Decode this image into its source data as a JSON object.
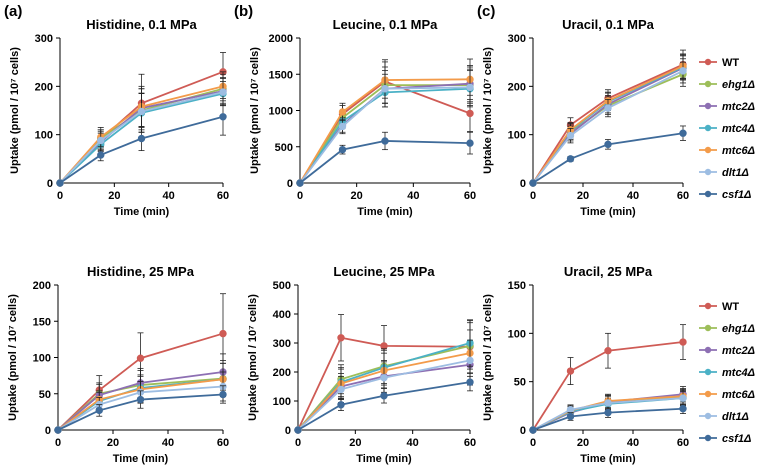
{
  "panel_letters": [
    "(a)",
    "(b)",
    "(c)"
  ],
  "legend": [
    "WT",
    "ehg1Δ",
    "mtc2Δ",
    "mtc4Δ",
    "mtc6Δ",
    "dlt1Δ",
    "csf1Δ"
  ],
  "series_colors": {
    "WT": "#cf5b55",
    "ehg1Δ": "#9dbe59",
    "mtc2Δ": "#8d6fb3",
    "mtc4Δ": "#4bb1c6",
    "mtc6Δ": "#f39b4a",
    "dlt1Δ": "#9dbde2",
    "csf1Δ": "#3f6b9a"
  },
  "chart_data": [
    {
      "type": "line",
      "title": "Histidine, 0.1 MPa",
      "panel": "(a)",
      "xlabel": "Time (min)",
      "ylabel": "Uptake (pmol / 10⁷ cells)",
      "xlim": [
        0,
        60
      ],
      "xticks": [
        0,
        20,
        40,
        60
      ],
      "ylim": [
        0,
        300
      ],
      "yticks": [
        0,
        100,
        200,
        300
      ],
      "x": [
        0,
        15,
        30,
        60
      ],
      "series": [
        {
          "name": "WT",
          "values": [
            0,
            90,
            165,
            230
          ],
          "errors": [
            0,
            20,
            60,
            40
          ]
        },
        {
          "name": "ehg1Δ",
          "values": [
            0,
            92,
            150,
            195
          ],
          "errors": [
            0,
            18,
            45,
            30
          ]
        },
        {
          "name": "mtc2Δ",
          "values": [
            0,
            85,
            155,
            190
          ],
          "errors": [
            0,
            18,
            40,
            28
          ]
        },
        {
          "name": "mtc4Δ",
          "values": [
            0,
            80,
            145,
            185
          ],
          "errors": [
            0,
            15,
            40,
            25
          ]
        },
        {
          "name": "mtc6Δ",
          "values": [
            0,
            95,
            158,
            200
          ],
          "errors": [
            0,
            20,
            42,
            30
          ]
        },
        {
          "name": "dlt1Δ",
          "values": [
            0,
            88,
            148,
            188
          ],
          "errors": [
            0,
            18,
            38,
            28
          ]
        },
        {
          "name": "csf1Δ",
          "values": [
            0,
            58,
            92,
            137
          ],
          "errors": [
            0,
            12,
            25,
            38
          ]
        }
      ]
    },
    {
      "type": "line",
      "title": "Leucine, 0.1 MPa",
      "panel": "(b)",
      "xlabel": "Time (min)",
      "ylabel": "Uptake (pmol / 10⁷ cells)",
      "xlim": [
        0,
        60
      ],
      "xticks": [
        0,
        20,
        40,
        60
      ],
      "ylim": [
        0,
        2000
      ],
      "yticks": [
        0,
        500,
        1000,
        1500,
        2000
      ],
      "x": [
        0,
        15,
        30,
        60
      ],
      "series": [
        {
          "name": "WT",
          "values": [
            0,
            950,
            1400,
            960
          ],
          "errors": [
            0,
            120,
            300,
            250
          ]
        },
        {
          "name": "ehg1Δ",
          "values": [
            0,
            900,
            1350,
            1350
          ],
          "errors": [
            0,
            100,
            250,
            250
          ]
        },
        {
          "name": "mtc2Δ",
          "values": [
            0,
            800,
            1300,
            1370
          ],
          "errors": [
            0,
            100,
            250,
            250
          ]
        },
        {
          "name": "mtc4Δ",
          "values": [
            0,
            850,
            1250,
            1300
          ],
          "errors": [
            0,
            100,
            200,
            250
          ]
        },
        {
          "name": "mtc6Δ",
          "values": [
            0,
            980,
            1420,
            1430
          ],
          "errors": [
            0,
            120,
            250,
            280
          ]
        },
        {
          "name": "dlt1Δ",
          "values": [
            0,
            780,
            1300,
            1320
          ],
          "errors": [
            0,
            100,
            200,
            250
          ]
        },
        {
          "name": "csf1Δ",
          "values": [
            0,
            460,
            580,
            550
          ],
          "errors": [
            0,
            60,
            120,
            150
          ]
        }
      ]
    },
    {
      "type": "line",
      "title": "Uracil, 0.1 MPa",
      "panel": "(c)",
      "xlabel": "Time (min)",
      "ylabel": "Uptake (pmol / 10⁷ cells)",
      "xlim": [
        0,
        60
      ],
      "xticks": [
        0,
        20,
        40,
        60
      ],
      "ylim": [
        0,
        300
      ],
      "yticks": [
        0,
        100,
        200,
        300
      ],
      "x": [
        0,
        15,
        30,
        60
      ],
      "series": [
        {
          "name": "WT",
          "values": [
            0,
            120,
            175,
            245
          ],
          "errors": [
            0,
            15,
            18,
            30
          ]
        },
        {
          "name": "ehg1Δ",
          "values": [
            0,
            105,
            160,
            225
          ],
          "errors": [
            0,
            15,
            18,
            25
          ]
        },
        {
          "name": "mtc2Δ",
          "values": [
            0,
            102,
            163,
            238
          ],
          "errors": [
            0,
            15,
            18,
            25
          ]
        },
        {
          "name": "mtc4Δ",
          "values": [
            0,
            108,
            168,
            240
          ],
          "errors": [
            0,
            15,
            18,
            25
          ]
        },
        {
          "name": "mtc6Δ",
          "values": [
            0,
            110,
            170,
            242
          ],
          "errors": [
            0,
            15,
            18,
            25
          ]
        },
        {
          "name": "dlt1Δ",
          "values": [
            0,
            98,
            155,
            232
          ],
          "errors": [
            0,
            15,
            18,
            25
          ]
        },
        {
          "name": "csf1Δ",
          "values": [
            0,
            50,
            80,
            103
          ],
          "errors": [
            0,
            5,
            10,
            15
          ]
        }
      ]
    },
    {
      "type": "line",
      "title": "Histidine, 25 MPa",
      "panel": "",
      "xlabel": "Time (min)",
      "ylabel": "Uptake (pmol / 10⁷ cells)",
      "xlim": [
        0,
        60
      ],
      "xticks": [
        0,
        20,
        40,
        60
      ],
      "ylim": [
        0,
        200
      ],
      "yticks": [
        0,
        50,
        100,
        150,
        200
      ],
      "x": [
        0,
        15,
        30,
        60
      ],
      "series": [
        {
          "name": "WT",
          "values": [
            0,
            55,
            99,
            133
          ],
          "errors": [
            0,
            20,
            35,
            55
          ]
        },
        {
          "name": "ehg1Δ",
          "values": [
            0,
            50,
            62,
            71
          ],
          "errors": [
            0,
            15,
            20,
            25
          ]
        },
        {
          "name": "mtc2Δ",
          "values": [
            0,
            48,
            65,
            80
          ],
          "errors": [
            0,
            15,
            20,
            25
          ]
        },
        {
          "name": "mtc4Δ",
          "values": [
            0,
            40,
            58,
            70
          ],
          "errors": [
            0,
            12,
            18,
            22
          ]
        },
        {
          "name": "mtc6Δ",
          "values": [
            0,
            42,
            56,
            70
          ],
          "errors": [
            0,
            12,
            18,
            22
          ]
        },
        {
          "name": "dlt1Δ",
          "values": [
            0,
            35,
            52,
            60
          ],
          "errors": [
            0,
            10,
            15,
            20
          ]
        },
        {
          "name": "csf1Δ",
          "values": [
            0,
            27,
            42,
            49
          ],
          "errors": [
            0,
            8,
            12,
            12
          ]
        }
      ]
    },
    {
      "type": "line",
      "title": "Leucine, 25 MPa",
      "panel": "",
      "xlabel": "Time (min)",
      "ylabel": "Uptake (pmol / 10⁷ cells)",
      "xlim": [
        0,
        60
      ],
      "xticks": [
        0,
        20,
        40,
        60
      ],
      "ylim": [
        0,
        500
      ],
      "yticks": [
        0,
        100,
        200,
        300,
        400,
        500
      ],
      "x": [
        0,
        15,
        30,
        60
      ],
      "series": [
        {
          "name": "WT",
          "values": [
            0,
            318,
            290,
            287
          ],
          "errors": [
            0,
            80,
            70,
            90
          ]
        },
        {
          "name": "ehg1Δ",
          "values": [
            0,
            175,
            220,
            290
          ],
          "errors": [
            0,
            50,
            60,
            80
          ]
        },
        {
          "name": "mtc2Δ",
          "values": [
            0,
            150,
            185,
            225
          ],
          "errors": [
            0,
            45,
            55,
            70
          ]
        },
        {
          "name": "mtc4Δ",
          "values": [
            0,
            165,
            215,
            300
          ],
          "errors": [
            0,
            50,
            60,
            80
          ]
        },
        {
          "name": "mtc6Δ",
          "values": [
            0,
            160,
            205,
            265
          ],
          "errors": [
            0,
            50,
            60,
            80
          ]
        },
        {
          "name": "dlt1Δ",
          "values": [
            0,
            140,
            180,
            240
          ],
          "errors": [
            0,
            45,
            55,
            70
          ]
        },
        {
          "name": "csf1Δ",
          "values": [
            0,
            87,
            118,
            165
          ],
          "errors": [
            0,
            20,
            25,
            30
          ]
        }
      ]
    },
    {
      "type": "line",
      "title": "Uracil, 25 MPa",
      "panel": "",
      "xlabel": "Time (min)",
      "ylabel": "Uptake (pmol / 10⁷ cells)",
      "xlim": [
        0,
        60
      ],
      "xticks": [
        0,
        20,
        40,
        60
      ],
      "ylim": [
        0,
        150
      ],
      "yticks": [
        0,
        50,
        100,
        150
      ],
      "x": [
        0,
        15,
        30,
        60
      ],
      "series": [
        {
          "name": "WT",
          "values": [
            0,
            61,
            82,
            91
          ],
          "errors": [
            0,
            14,
            18,
            18
          ]
        },
        {
          "name": "ehg1Δ",
          "values": [
            0,
            20,
            28,
            34
          ],
          "errors": [
            0,
            5,
            7,
            8
          ]
        },
        {
          "name": "mtc2Δ",
          "values": [
            0,
            18,
            29,
            37
          ],
          "errors": [
            0,
            5,
            7,
            8
          ]
        },
        {
          "name": "mtc4Δ",
          "values": [
            0,
            19,
            27,
            33
          ],
          "errors": [
            0,
            5,
            6,
            7
          ]
        },
        {
          "name": "mtc6Δ",
          "values": [
            0,
            20,
            30,
            35
          ],
          "errors": [
            0,
            5,
            7,
            8
          ]
        },
        {
          "name": "dlt1Δ",
          "values": [
            0,
            21,
            28,
            33
          ],
          "errors": [
            0,
            5,
            7,
            8
          ]
        },
        {
          "name": "csf1Δ",
          "values": [
            0,
            14,
            18,
            22
          ],
          "errors": [
            0,
            4,
            5,
            5
          ]
        }
      ]
    }
  ]
}
